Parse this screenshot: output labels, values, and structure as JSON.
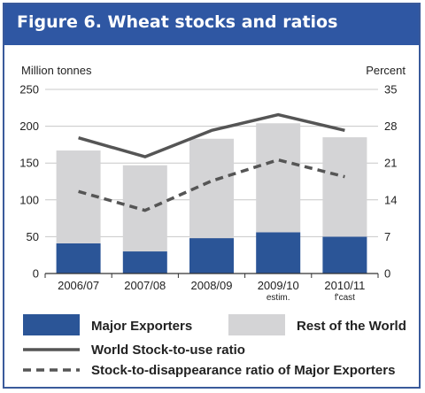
{
  "chart_data": {
    "type": "bar",
    "title": "Figure 6. Wheat stocks and ratios",
    "categories": [
      "2006/07",
      "2007/08",
      "2008/09",
      "2009/10",
      "2010/11"
    ],
    "category_sublabels": [
      "",
      "",
      "",
      "estim.",
      "f'cast"
    ],
    "left_axis": {
      "label": "Million tonnes",
      "ticks": [
        "0",
        "50",
        "100",
        "150",
        "200",
        "250"
      ],
      "ylim": [
        0,
        250
      ]
    },
    "right_axis": {
      "label": "Percent",
      "ticks": [
        "0",
        "7",
        "14",
        "21",
        "28",
        "35"
      ],
      "ylim": [
        0,
        35
      ]
    },
    "series": [
      {
        "name": "Major Exporters",
        "type": "bar-stacked",
        "axis": "left",
        "color": "#2b5597",
        "values": [
          41,
          30,
          48,
          56,
          50
        ]
      },
      {
        "name": "Rest of the World",
        "type": "bar-stacked",
        "axis": "left",
        "color": "#d4d4d6",
        "values": [
          126,
          117,
          135,
          148,
          135
        ]
      },
      {
        "name": "World Stock-to-use ratio",
        "type": "line",
        "axis": "right",
        "color": "#555555",
        "style": "solid",
        "values": [
          25.8,
          22.2,
          27.2,
          30.2,
          27.2
        ]
      },
      {
        "name": "Stock-to-disappearance ratio of Major Exporters",
        "type": "line",
        "axis": "right",
        "color": "#555555",
        "style": "dashed",
        "values": [
          15.6,
          12.0,
          17.6,
          21.6,
          18.4
        ]
      }
    ],
    "grid": true,
    "legend_position": "bottom"
  }
}
